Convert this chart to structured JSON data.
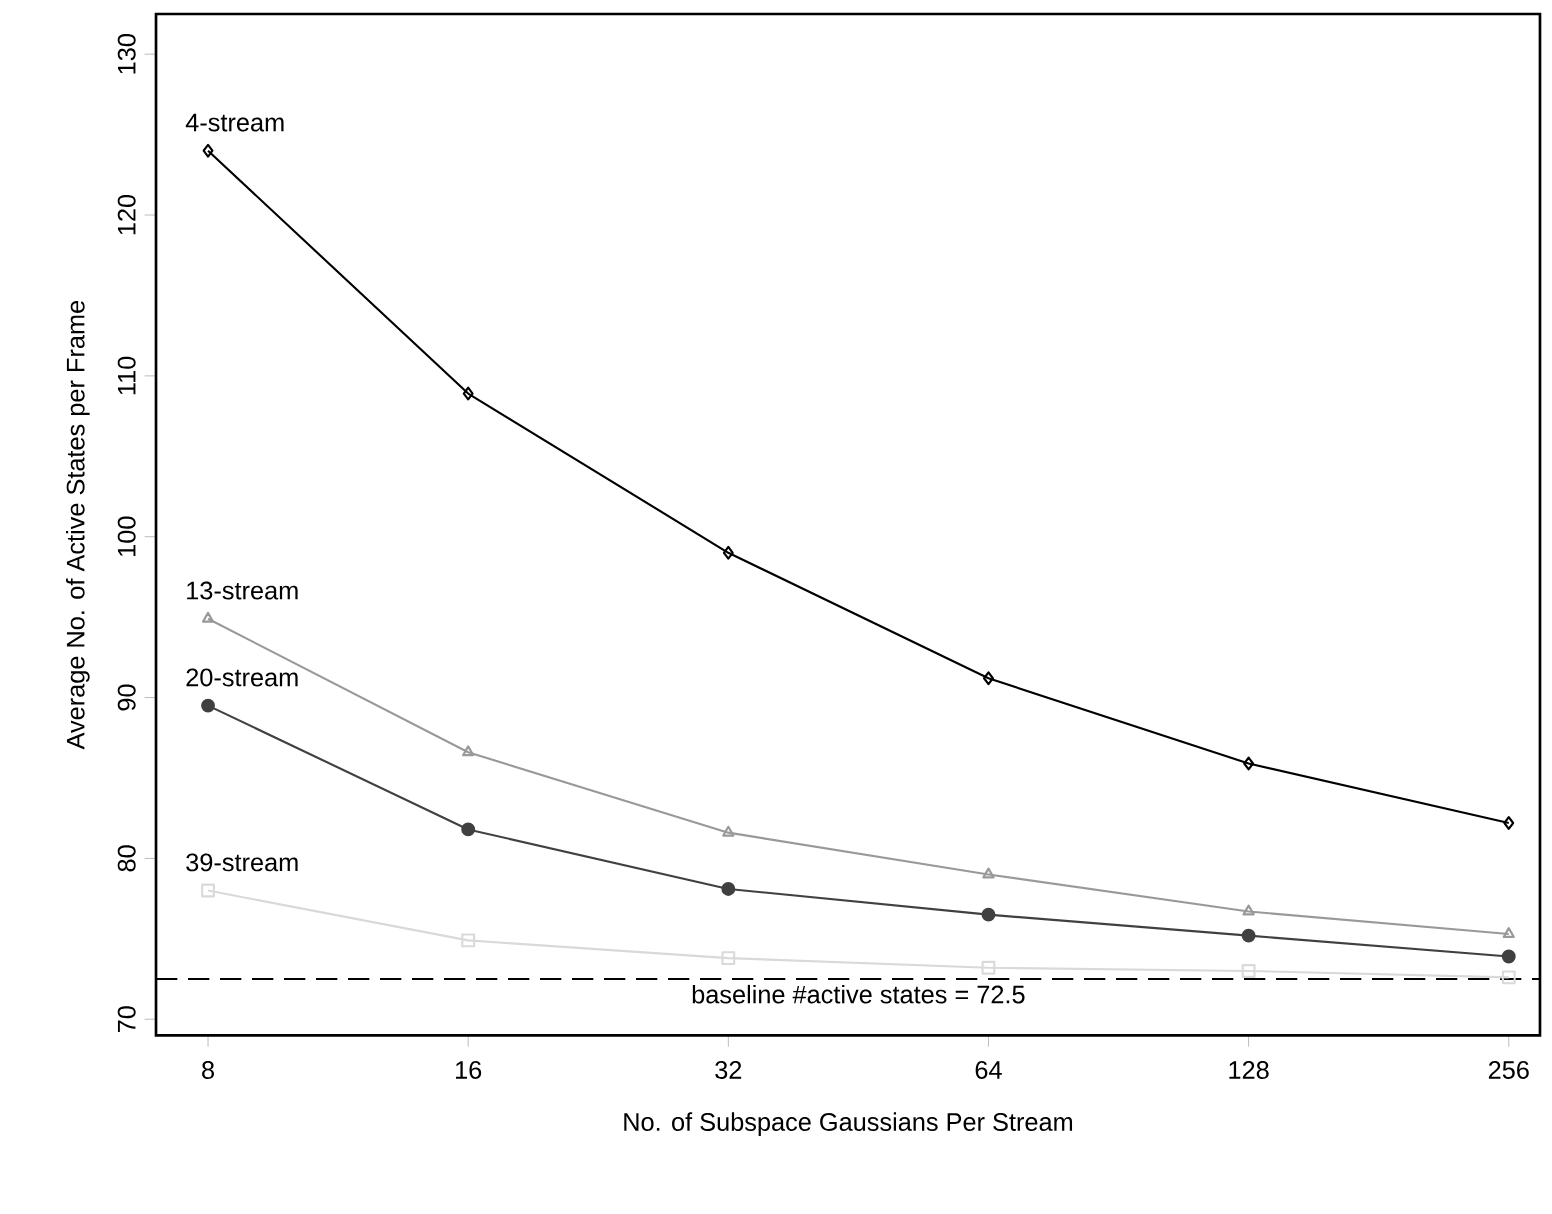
{
  "chart_data": {
    "type": "line",
    "xlabel": "No. of Subspace Gaussians Per Stream",
    "ylabel": "Average No. of Active States per Frame",
    "categories": [
      "8",
      "16",
      "32",
      "64",
      "128",
      "256"
    ],
    "series": [
      {
        "name": "4-stream",
        "color": "#000000",
        "marker": "diamond",
        "values": [
          124.0,
          108.9,
          99.0,
          91.2,
          85.9,
          82.2
        ]
      },
      {
        "name": "13-stream",
        "color": "#999999",
        "marker": "triangle",
        "values": [
          94.9,
          86.6,
          81.6,
          79.0,
          76.7,
          75.3
        ]
      },
      {
        "name": "20-stream",
        "color": "#404040",
        "marker": "circle",
        "values": [
          89.5,
          81.8,
          78.1,
          76.5,
          75.2,
          73.9
        ]
      },
      {
        "name": "39-stream",
        "color": "#d9d9d9",
        "marker": "square",
        "values": [
          78.0,
          74.9,
          73.8,
          73.2,
          73.0,
          72.6
        ]
      }
    ],
    "ylim": [
      69,
      132.5
    ],
    "yticks": [
      70,
      80,
      90,
      100,
      110,
      120,
      130
    ],
    "ref_lines": [
      {
        "axis": "y",
        "value": 72.5,
        "label": "baseline #active states = 72.5",
        "line_style": "dashed",
        "color": "#000000"
      }
    ],
    "grid": false,
    "line_style": "solid"
  }
}
